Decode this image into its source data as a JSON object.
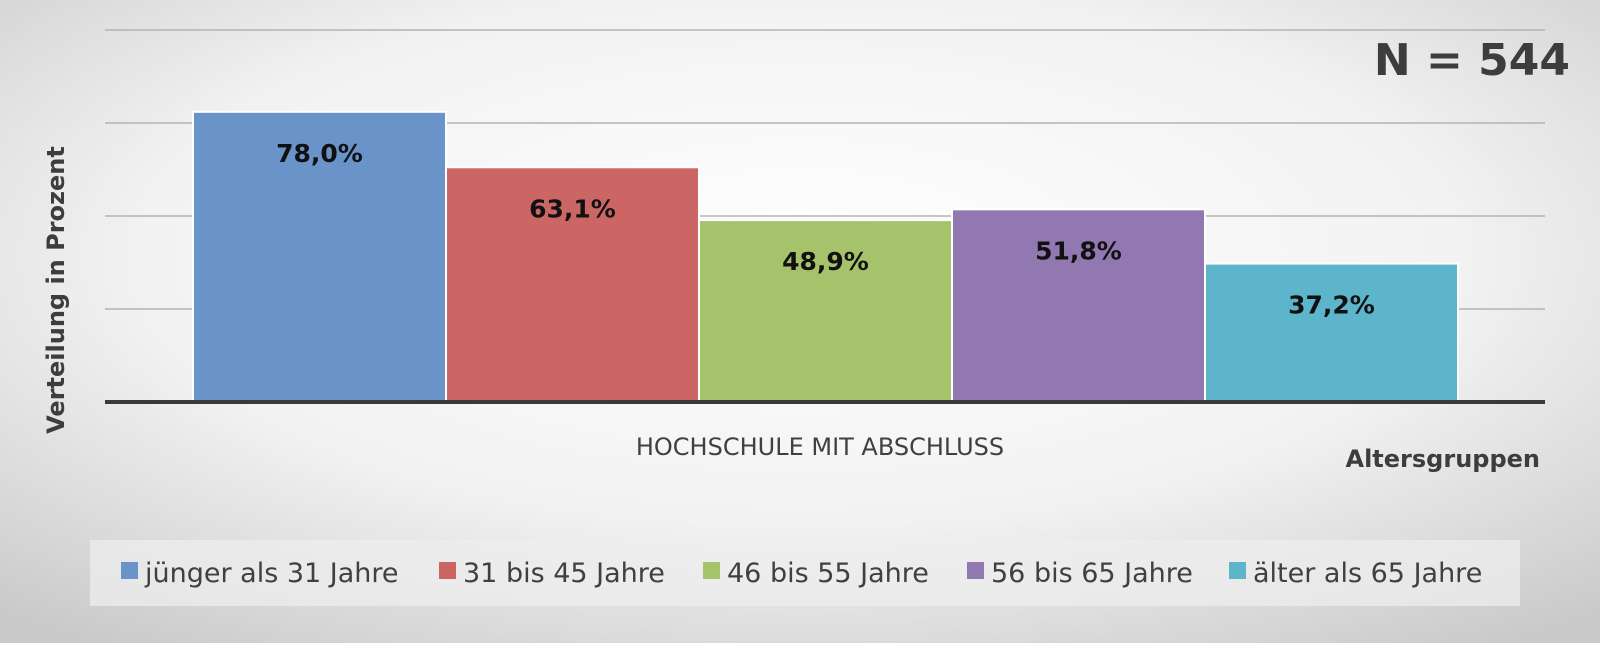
{
  "chart_data": {
    "type": "bar",
    "annotation": "N = 544",
    "ylabel": "Verteilung in Prozent",
    "xlabel": "Altersgruppen",
    "categories": [
      "HOCHSCHULE MIT ABSCHLUSS"
    ],
    "ylim": [
      0,
      100
    ],
    "grid": true,
    "legend_position": "bottom",
    "series": [
      {
        "name": "jünger als 31 Jahre",
        "values": [
          78.0
        ],
        "label": "78,0%",
        "color": "#6993c9"
      },
      {
        "name": "31 bis 45 Jahre",
        "values": [
          63.1
        ],
        "label": "63,1%",
        "color": "#cb6664"
      },
      {
        "name": "46 bis 55 Jahre",
        "values": [
          48.9
        ],
        "label": "48,9%",
        "color": "#a6c36b"
      },
      {
        "name": "56 bis 65 Jahre",
        "values": [
          51.8
        ],
        "label": "51,8%",
        "color": "#9178b1"
      },
      {
        "name": "älter als 65 Jahre",
        "values": [
          37.2
        ],
        "label": "37,2%",
        "color": "#5db5cb"
      }
    ]
  }
}
